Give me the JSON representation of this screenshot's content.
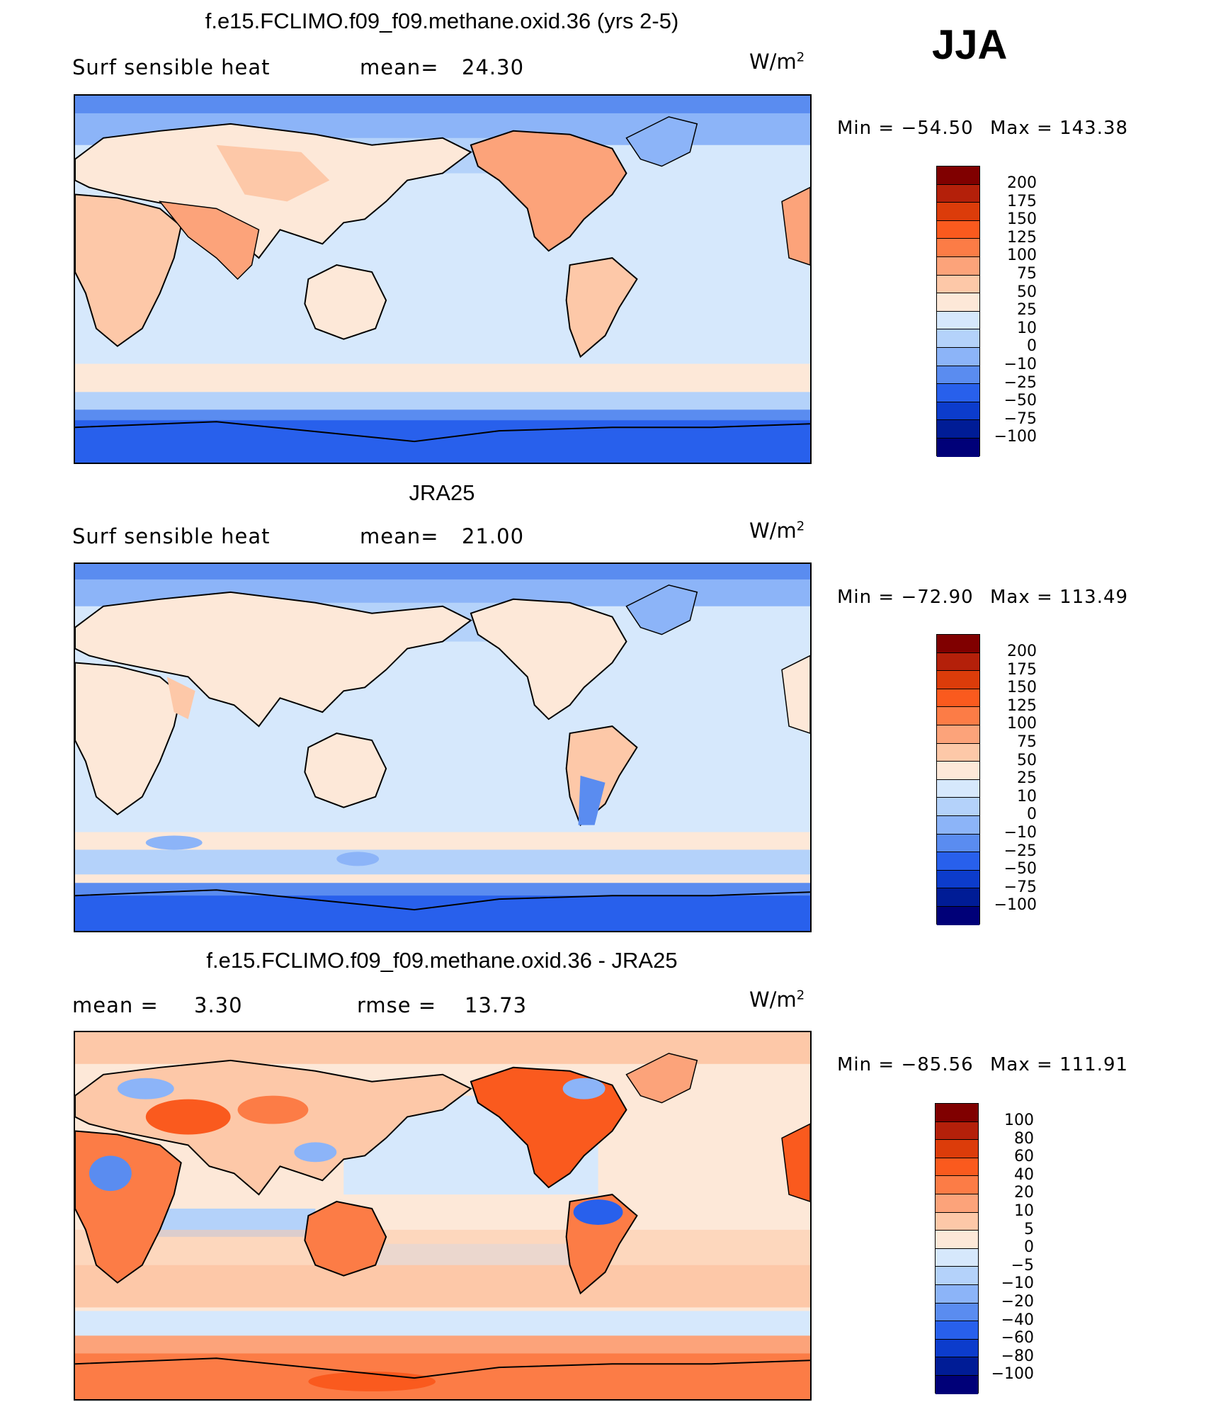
{
  "season": "JJA",
  "panels": [
    {
      "title": "f.e15.FCLIMO.f09_f09.methane.oxid.36 (yrs 2-5)",
      "left_label": "Surf  sensible  heat",
      "stat_label": "mean=",
      "stat_value": "24.30",
      "units_base": "W/m",
      "units_exp": "2",
      "min_label": "Min  =  −54.50",
      "max_label": "Max  =  143.38",
      "colorbar": {
        "levels": [
          "200",
          "175",
          "150",
          "125",
          "100",
          "75",
          "50",
          "25",
          "10",
          "0",
          "−10",
          "−25",
          "−50",
          "−75",
          "−100"
        ],
        "colors": [
          "#800000",
          "#b4200a",
          "#dc3c0a",
          "#fa5a1e",
          "#fc7c46",
          "#fca37a",
          "#fdc8a8",
          "#fde8d8",
          "#d6e8fc",
          "#b4d2fa",
          "#8cb4f8",
          "#5a8cf0",
          "#2860ec",
          "#0c3ccc",
          "#001c96",
          "#000078"
        ]
      }
    },
    {
      "title": "JRA25",
      "left_label": "Surf  sensible  heat",
      "stat_label": "mean=",
      "stat_value": "21.00",
      "units_base": "W/m",
      "units_exp": "2",
      "min_label": "Min  =  −72.90",
      "max_label": "Max  =  113.49",
      "colorbar": {
        "levels": [
          "200",
          "175",
          "150",
          "125",
          "100",
          "75",
          "50",
          "25",
          "10",
          "0",
          "−10",
          "−25",
          "−50",
          "−75",
          "−100"
        ],
        "colors": [
          "#800000",
          "#b4200a",
          "#dc3c0a",
          "#fa5a1e",
          "#fc7c46",
          "#fca37a",
          "#fdc8a8",
          "#fde8d8",
          "#d6e8fc",
          "#b4d2fa",
          "#8cb4f8",
          "#5a8cf0",
          "#2860ec",
          "#0c3ccc",
          "#001c96",
          "#000078"
        ]
      }
    },
    {
      "title": "f.e15.FCLIMO.f09_f09.methane.oxid.36 - JRA25",
      "left_label": "mean  =",
      "left_value": "3.30",
      "stat_label": "rmse  =",
      "stat_value": "13.73",
      "units_base": "W/m",
      "units_exp": "2",
      "min_label": "Min  =  −85.56",
      "max_label": "Max  =  111.91",
      "colorbar": {
        "levels": [
          "100",
          "80",
          "60",
          "40",
          "20",
          "10",
          "5",
          "0",
          "−5",
          "−10",
          "−20",
          "−40",
          "−60",
          "−80",
          "−100"
        ],
        "colors": [
          "#800000",
          "#b4200a",
          "#dc3c0a",
          "#fa5a1e",
          "#fc7c46",
          "#fca37a",
          "#fdc8a8",
          "#fde8d8",
          "#d6e8fc",
          "#b4d2fa",
          "#8cb4f8",
          "#5a8cf0",
          "#2860ec",
          "#0c3ccc",
          "#001c96",
          "#000078"
        ]
      }
    }
  ]
}
